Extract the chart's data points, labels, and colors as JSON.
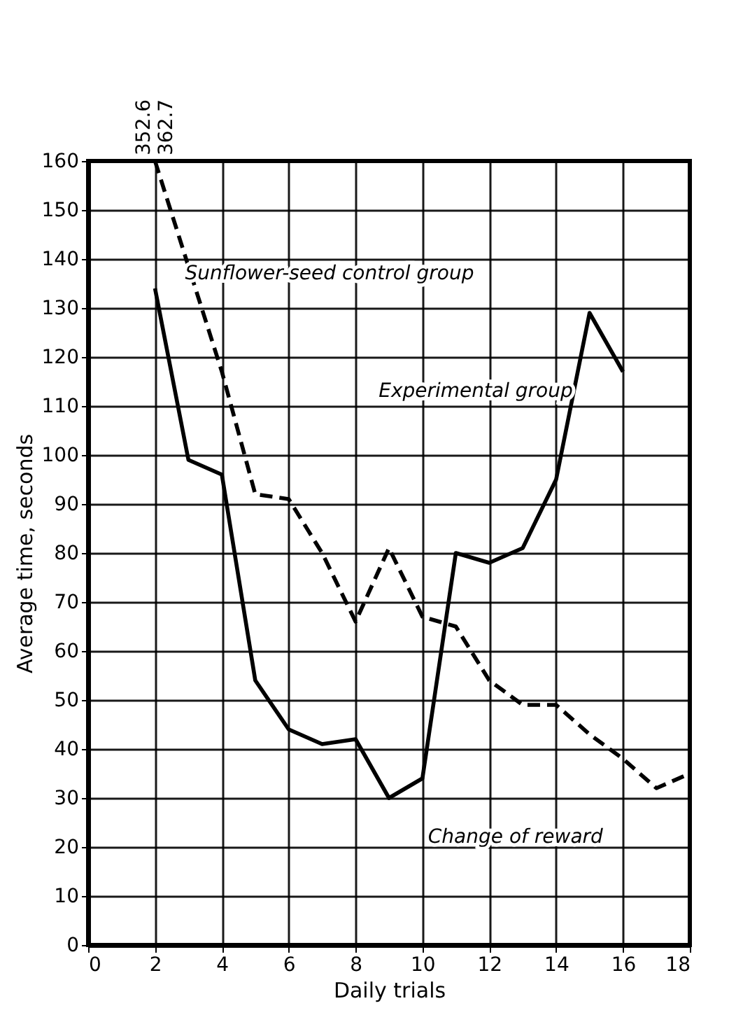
{
  "chart_data": {
    "type": "line",
    "xlabel": "Daily trials",
    "ylabel": "Average time, seconds",
    "xlim": [
      0,
      18
    ],
    "xticks": [
      0,
      2,
      4,
      6,
      8,
      10,
      12,
      14,
      16,
      18
    ],
    "ylim": [
      0,
      160
    ],
    "yticks": [
      0,
      10,
      20,
      30,
      40,
      50,
      60,
      70,
      80,
      90,
      100,
      110,
      120,
      130,
      140,
      150,
      160
    ],
    "grid": true,
    "marker": "none",
    "series": [
      {
        "name": "Experimental group",
        "color": "#000000",
        "line_style": "solid",
        "x": [
          2,
          3,
          4,
          5,
          6,
          7,
          8,
          9,
          10,
          11,
          12,
          13,
          14,
          15,
          16
        ],
        "values": [
          134,
          99,
          96,
          54,
          44,
          41,
          42,
          30,
          34,
          80,
          78,
          81,
          95,
          129,
          117
        ]
      },
      {
        "name": "Sunflower-seed control group",
        "color": "#000000",
        "line_style": "dashed",
        "x": [
          2,
          4,
          5,
          6,
          7,
          8,
          9,
          10,
          11,
          12,
          13,
          14,
          15,
          16,
          17,
          18
        ],
        "values": [
          160,
          117,
          92,
          91,
          80,
          66,
          81,
          67,
          65,
          54,
          49,
          49,
          43,
          38,
          32,
          35
        ]
      }
    ],
    "annotations": [
      "352.6",
      "362.7",
      "Change of reward"
    ]
  }
}
